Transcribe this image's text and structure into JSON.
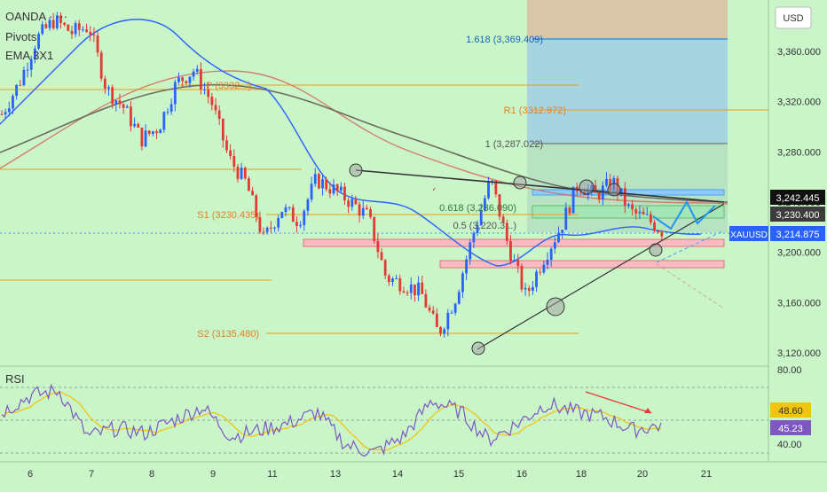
{
  "colors": {
    "background": "#c9f5c9",
    "candle_up": "#2962ff",
    "candle_down": "#e53935",
    "pivot": "#f39c12",
    "fib": "#1e88e5",
    "ema_fast": "#2962ff",
    "ema_mid": "#d66a5a",
    "ema_slow": "#6d6d5c",
    "rsi": "#7e57c2",
    "rsi_ma": "#f1c40f",
    "support_zone": "#f8bcc4",
    "resistance_zone": "#90caf9"
  },
  "header": {
    "symbol_line": "OANDA · ···",
    "line2": "Pivots",
    "line3": "EMA 3X1"
  },
  "currency": "USD",
  "price_labels": {
    "current_symbol": "XAUUSD",
    "current": "3,214.875",
    "tag1": "3,242.445",
    "tag2": "3,230.400"
  },
  "rsi": {
    "label": "RSI",
    "value1": "48.60",
    "value2": "45.23",
    "axis_top": "80.00",
    "axis_bottom": "40.00"
  },
  "chart_data": {
    "type": "line",
    "y_axis": {
      "ticks": [
        3360,
        3320,
        3280,
        3240,
        3200,
        3160,
        3120
      ],
      "tick_labels": [
        "3,360.000",
        "3,320.000",
        "3,280.000",
        "3,240.000",
        "3,200.000",
        "3,160.000",
        "3,120.000"
      ],
      "range": [
        3100,
        3400
      ]
    },
    "x_axis": {
      "tick_labels": [
        "6",
        "7",
        "8",
        "9",
        "11",
        "13",
        "14",
        "15",
        "16",
        "18",
        "20",
        "21"
      ]
    },
    "pivot_levels": [
      {
        "label": "P (3332...)",
        "value": 3332
      },
      {
        "label": "R1 (3312.972)",
        "value": 3312.972
      },
      {
        "label": "S1 (3230.435)",
        "value": 3230.435
      },
      {
        "label": "S2 (3135.480)",
        "value": 3135.48
      }
    ],
    "fib_levels": [
      {
        "label": "1.618 (3,369.409)",
        "value": 3369.409
      },
      {
        "label": "1 (3,287.022)",
        "value": 3287.022
      },
      {
        "label": "0.618 (3,236.090)",
        "value": 3236.09
      },
      {
        "label": "0.5 (3,220.3...)",
        "value": 3220.3
      }
    ],
    "price_path": [
      [
        0,
        3310
      ],
      [
        1,
        3335
      ],
      [
        2,
        3370
      ],
      [
        3,
        3385
      ],
      [
        4,
        3375
      ],
      [
        5,
        3380
      ],
      [
        6,
        3330
      ],
      [
        7,
        3315
      ],
      [
        8,
        3290
      ],
      [
        9,
        3300
      ],
      [
        10,
        3335
      ],
      [
        11,
        3345
      ],
      [
        12,
        3320
      ],
      [
        13,
        3275
      ],
      [
        14,
        3255
      ],
      [
        15,
        3210
      ],
      [
        16,
        3235
      ],
      [
        17,
        3225
      ],
      [
        18,
        3258
      ],
      [
        19,
        3250
      ],
      [
        20,
        3240
      ],
      [
        21,
        3228
      ],
      [
        22,
        3180
      ],
      [
        23,
        3175
      ],
      [
        24,
        3168
      ],
      [
        25,
        3135
      ],
      [
        26,
        3165
      ],
      [
        27,
        3215
      ],
      [
        28,
        3258
      ],
      [
        29,
        3205
      ],
      [
        30,
        3165
      ],
      [
        31,
        3195
      ],
      [
        32,
        3220
      ],
      [
        33,
        3255
      ],
      [
        34,
        3245
      ],
      [
        35,
        3256
      ],
      [
        36,
        3232
      ],
      [
        37,
        3226
      ],
      [
        38,
        3215
      ]
    ],
    "rsi_values": [
      [
        0,
        55
      ],
      [
        3,
        65
      ],
      [
        6,
        68
      ],
      [
        9,
        40
      ],
      [
        12,
        45
      ],
      [
        15,
        42
      ],
      [
        18,
        50
      ],
      [
        21,
        58
      ],
      [
        24,
        40
      ],
      [
        27,
        44
      ],
      [
        30,
        48
      ],
      [
        33,
        55
      ],
      [
        36,
        35
      ],
      [
        39,
        30
      ],
      [
        42,
        40
      ],
      [
        45,
        62
      ],
      [
        48,
        55
      ],
      [
        51,
        38
      ],
      [
        54,
        48
      ],
      [
        57,
        60
      ],
      [
        60,
        55
      ],
      [
        63,
        52
      ],
      [
        66,
        44
      ],
      [
        69,
        47
      ]
    ]
  }
}
